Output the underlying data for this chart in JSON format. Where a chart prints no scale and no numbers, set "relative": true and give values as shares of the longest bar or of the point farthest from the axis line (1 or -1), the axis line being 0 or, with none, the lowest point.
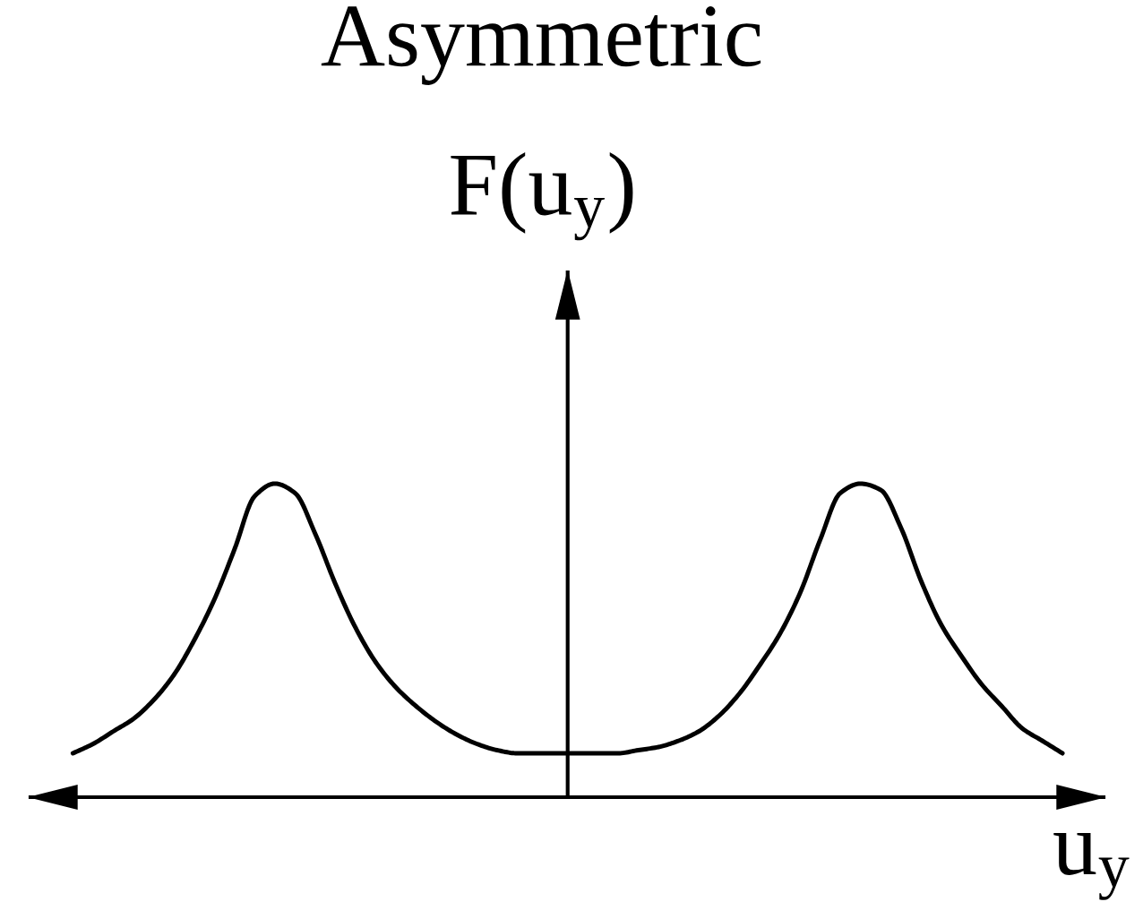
{
  "chart_data": {
    "type": "line",
    "title": "Asymmetric",
    "xlabel": "u$_{y}$",
    "ylabel": "F(u$_{y}$)",
    "relative": true,
    "categories": [
      null,
      null,
      null,
      null,
      null,
      null,
      null,
      null,
      null,
      null,
      null,
      null,
      null,
      null,
      null,
      null,
      null,
      null,
      null,
      null,
      null,
      null,
      null,
      null,
      null,
      null,
      null,
      null,
      null,
      null,
      null,
      null,
      null,
      null,
      null,
      null,
      null,
      null,
      null,
      null,
      null,
      null,
      null,
      null,
      null,
      null,
      null,
      null,
      null,
      null
    ],
    "series": [
      {
        "color": "#000000",
        "values": [
          0.14,
          0.17,
          0.21,
          0.25,
          0.31,
          0.39,
          0.5,
          0.63,
          0.79,
          0.96,
          1.0,
          0.97,
          0.84,
          0.68,
          0.54,
          0.43,
          0.35,
          0.29,
          0.24,
          0.2,
          0.17,
          0.15,
          0.14,
          0.14,
          0.14,
          0.14,
          0.14,
          0.14,
          0.15,
          0.16,
          0.18,
          0.21,
          0.26,
          0.33,
          0.42,
          0.52,
          0.65,
          0.82,
          0.97,
          1.0,
          0.98,
          0.86,
          0.69,
          0.55,
          0.45,
          0.36,
          0.29,
          0.22,
          0.18,
          0.14
        ]
      }
    ]
  }
}
